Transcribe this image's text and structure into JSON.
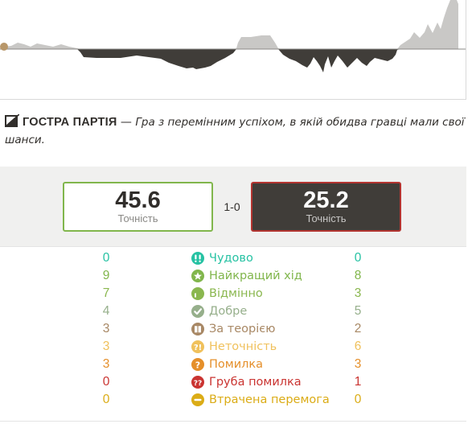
{
  "eval_graph": {
    "colors": {
      "white_fill": "#c9c8c6",
      "black_fill": "#403d39",
      "midline": "#8a8986",
      "marker": "#b8976a"
    }
  },
  "game_type": {
    "title": "ГОСТРА ПАРТІЯ",
    "separator": "—",
    "description": "Гра з перемінним успіхом, в якій обидва гравці мали свої шанси.",
    "icon": "sharp-game-icon"
  },
  "accuracy": {
    "white": {
      "value": "45.6",
      "label": "Точність",
      "border_color": "#81b64c"
    },
    "black": {
      "value": "25.2",
      "label": "Точність",
      "border_color": "#b33430"
    },
    "score": "1-0"
  },
  "classifications": [
    {
      "white": "0",
      "label": "Чудово",
      "black": "0",
      "color": "#26c2a3",
      "icon": "brilliant-icon"
    },
    {
      "white": "9",
      "label": "Найкращий хід",
      "black": "8",
      "color": "#81b64c",
      "icon": "best-move-icon"
    },
    {
      "white": "7",
      "label": "Відмінно",
      "black": "3",
      "color": "#8ab74f",
      "icon": "excellent-icon"
    },
    {
      "white": "4",
      "label": "Добре",
      "black": "5",
      "color": "#96af8b",
      "icon": "good-icon"
    },
    {
      "white": "3",
      "label": "За теорією",
      "black": "2",
      "color": "#a88865",
      "icon": "book-icon"
    },
    {
      "white": "3",
      "label": "Неточність",
      "black": "6",
      "color": "#f0c15c",
      "icon": "inaccuracy-icon"
    },
    {
      "white": "3",
      "label": "Помилка",
      "black": "3",
      "color": "#e58f2a",
      "icon": "mistake-icon"
    },
    {
      "white": "0",
      "label": "Груба помилка",
      "black": "1",
      "color": "#ca3431",
      "icon": "blunder-icon"
    },
    {
      "white": "0",
      "label": "Втрачена перемога",
      "black": "0",
      "color": "#dbac16",
      "icon": "missed-win-icon"
    }
  ]
}
